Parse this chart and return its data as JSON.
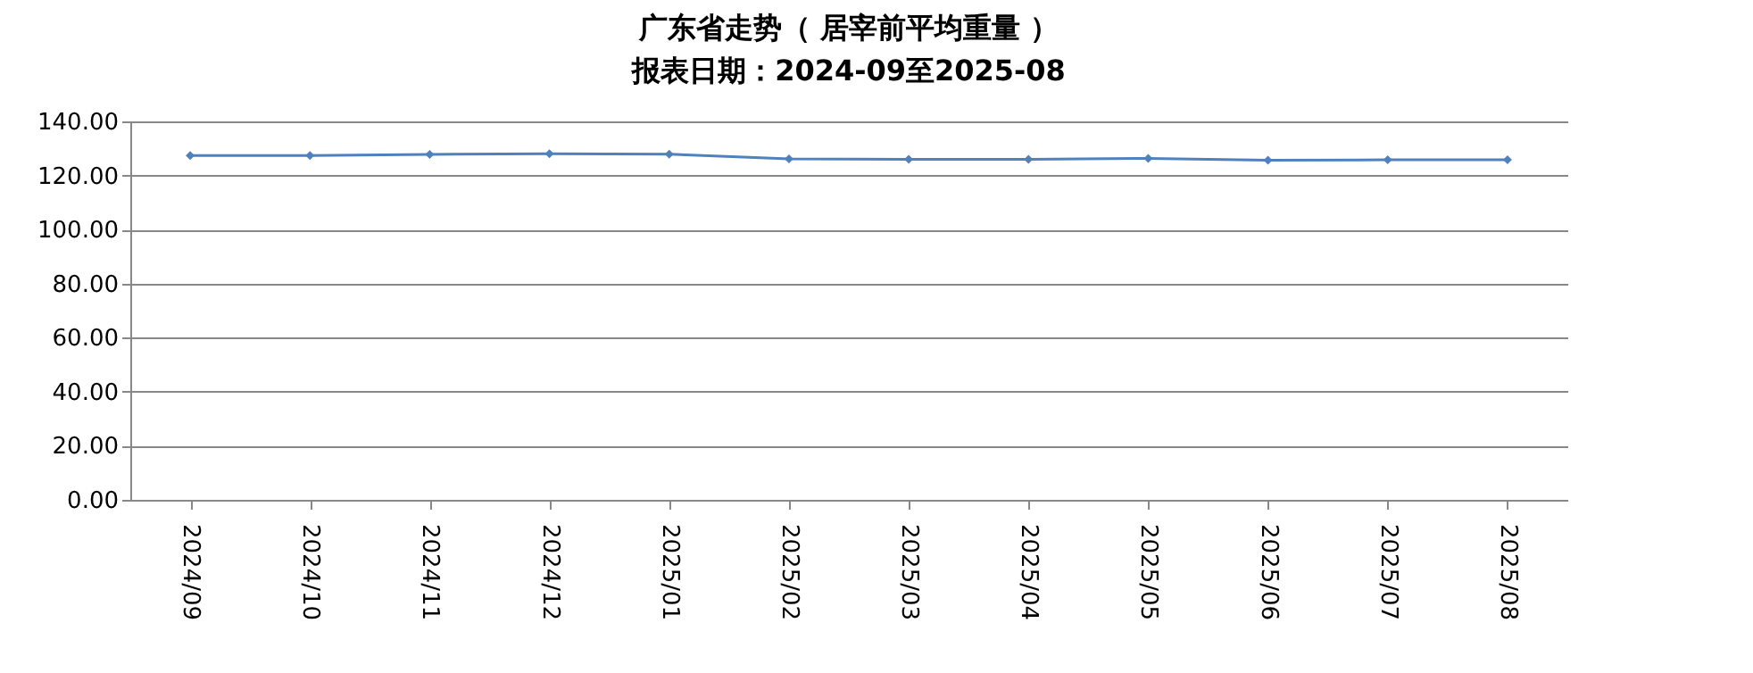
{
  "chart_data": {
    "type": "line",
    "title": "广东省走势（ 居宰前平均重量 ）",
    "subtitle": "报表日期：2024-09至2025-08",
    "categories": [
      "2024/09",
      "2024/10",
      "2024/11",
      "2024/12",
      "2025/01",
      "2025/02",
      "2025/03",
      "2025/04",
      "2025/05",
      "2025/06",
      "2025/07",
      "2025/08"
    ],
    "series": [
      {
        "color": "#4f81bd",
        "values": [
          127.4,
          127.4,
          127.8,
          128.0,
          127.9,
          126.1,
          126.0,
          126.0,
          126.3,
          125.6,
          125.8,
          125.8
        ]
      }
    ],
    "ylim": [
      0,
      140
    ],
    "yticks": [
      {
        "value": 0,
        "label": "0.00"
      },
      {
        "value": 20,
        "label": "20.00"
      },
      {
        "value": 40,
        "label": "40.00"
      },
      {
        "value": 60,
        "label": "60.00"
      },
      {
        "value": 80,
        "label": "80.00"
      },
      {
        "value": 100,
        "label": "100.00"
      },
      {
        "value": 120,
        "label": "120.00"
      },
      {
        "value": 140,
        "label": "140.00"
      }
    ],
    "grid": "y",
    "marker": "diamond",
    "line_style": "solid"
  }
}
